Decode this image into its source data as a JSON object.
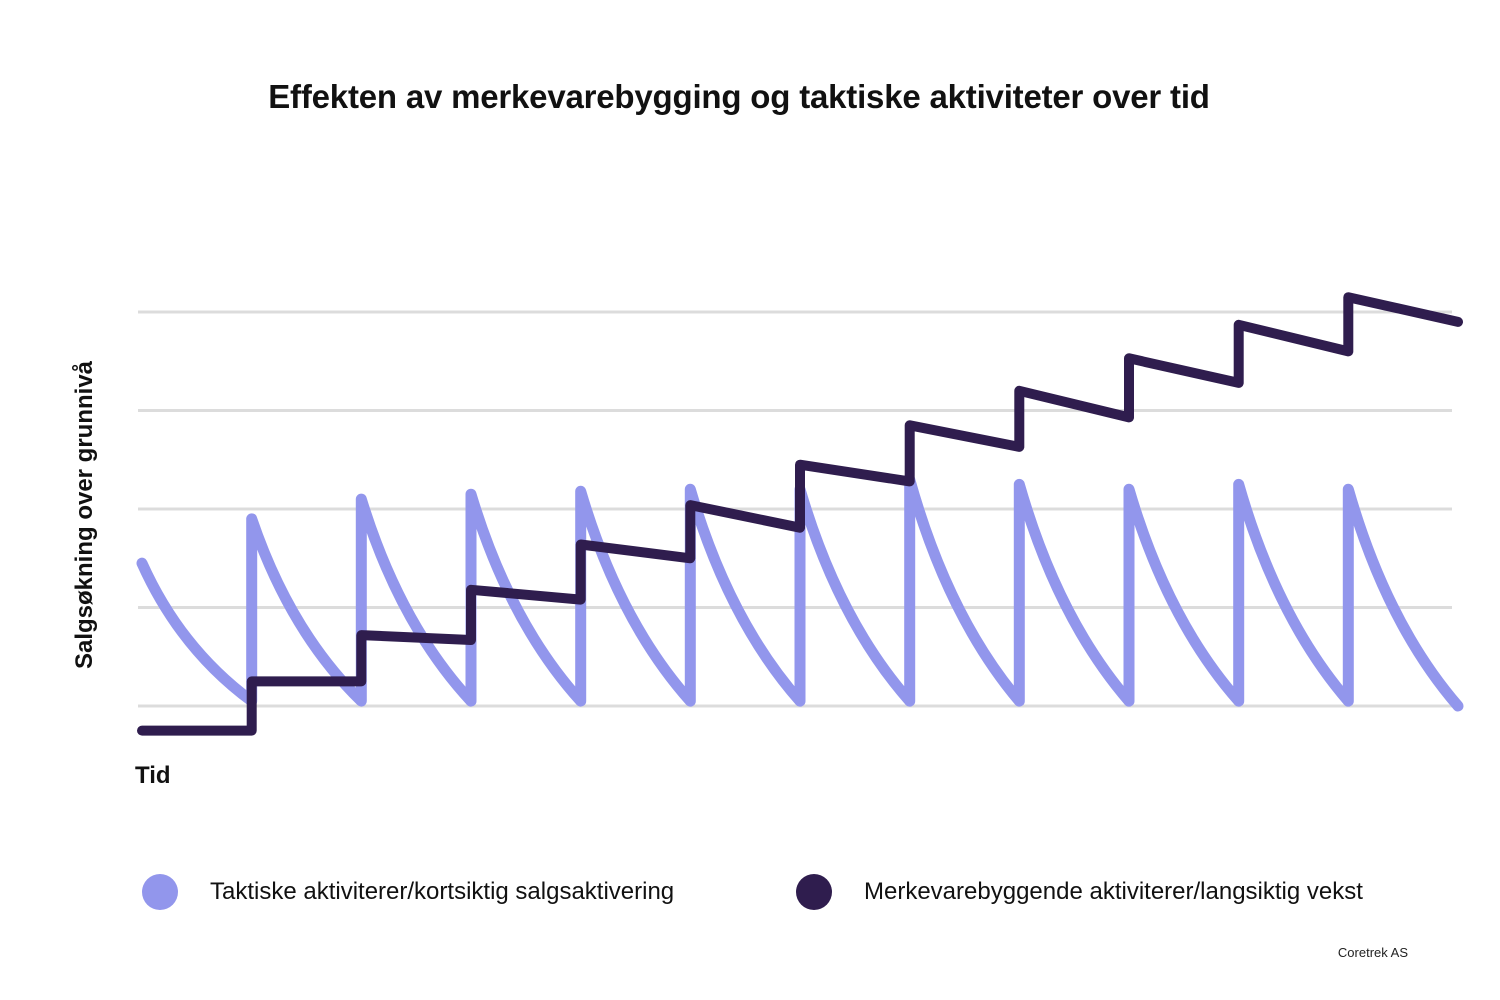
{
  "title": "Effekten av merkevarebygging og taktiske aktiviteter over tid",
  "colors": {
    "tactical": "#9296ec",
    "brand": "#2f1d4e",
    "grid": "#dcdcdc"
  },
  "chart_data": {
    "type": "line",
    "title": "Effekten av merkevarebygging og taktiske aktiviteter over tid",
    "xlabel": "Tid",
    "ylabel": "Salgsøkning over grunnivå",
    "xlim": [
      0,
      12
    ],
    "ylim": [
      -0.25,
      4.3
    ],
    "grid": true,
    "gridlines_y": [
      0,
      1,
      2,
      3,
      4
    ],
    "legend_position": "bottom",
    "series": [
      {
        "name": "Taktiske aktiviterer/kortsiktig salgsaktivering",
        "style": "sawtooth-decay",
        "points": [
          [
            0,
            1.45
          ],
          [
            1,
            0.05
          ],
          [
            1,
            1.9
          ],
          [
            2,
            0.05
          ],
          [
            2,
            2.1
          ],
          [
            3,
            0.05
          ],
          [
            3,
            2.15
          ],
          [
            4,
            0.05
          ],
          [
            4,
            2.18
          ],
          [
            5,
            0.05
          ],
          [
            5,
            2.2
          ],
          [
            6,
            0.05
          ],
          [
            6,
            2.2
          ],
          [
            7,
            0.05
          ],
          [
            7,
            2.3
          ],
          [
            8,
            0.05
          ],
          [
            8,
            2.25
          ],
          [
            9,
            0.05
          ],
          [
            9,
            2.2
          ],
          [
            10,
            0.05
          ],
          [
            10,
            2.25
          ],
          [
            11,
            0.05
          ],
          [
            11,
            2.2
          ],
          [
            12,
            0.0
          ]
        ]
      },
      {
        "name": "Merkevarebyggende aktiviterer/langsiktig vekst",
        "style": "step",
        "points": [
          [
            0,
            -0.25
          ],
          [
            1,
            -0.25
          ],
          [
            1,
            0.25
          ],
          [
            2,
            0.25
          ],
          [
            2,
            0.72
          ],
          [
            3,
            0.67
          ],
          [
            3,
            1.18
          ],
          [
            4,
            1.08
          ],
          [
            4,
            1.64
          ],
          [
            5,
            1.5
          ],
          [
            5,
            2.04
          ],
          [
            6,
            1.81
          ],
          [
            6,
            2.45
          ],
          [
            7,
            2.28
          ],
          [
            7,
            2.85
          ],
          [
            8,
            2.63
          ],
          [
            8,
            3.2
          ],
          [
            9,
            2.93
          ],
          [
            9,
            3.53
          ],
          [
            10,
            3.28
          ],
          [
            10,
            3.87
          ],
          [
            11,
            3.6
          ],
          [
            11,
            4.15
          ],
          [
            12,
            3.9
          ]
        ]
      }
    ]
  },
  "legend": [
    {
      "label": "Taktiske aktiviterer/kortsiktig salgsaktivering"
    },
    {
      "label": "Merkevarebyggende aktiviterer/langsiktig vekst"
    }
  ],
  "credit": "Coretrek AS"
}
